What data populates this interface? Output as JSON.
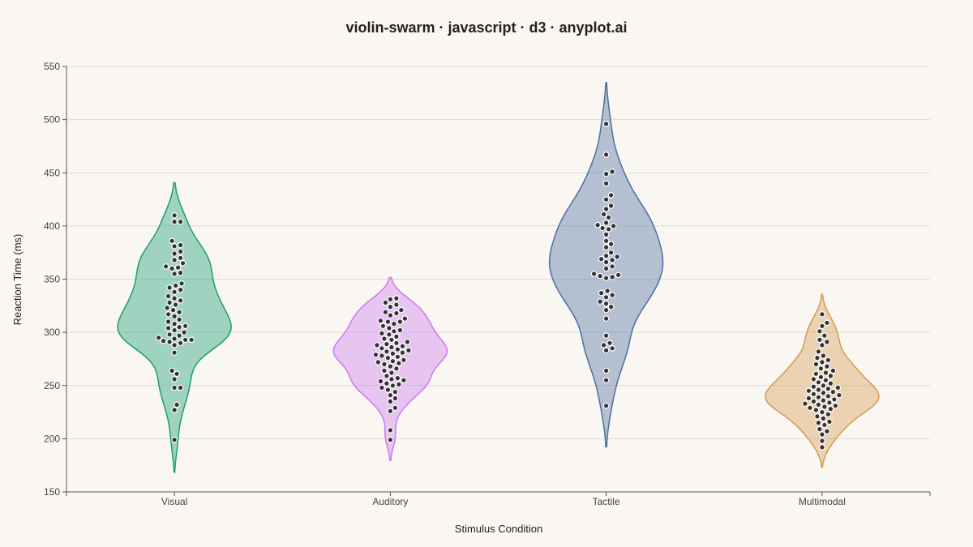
{
  "chart_data": {
    "type": "violin",
    "title": "violin-swarm · javascript · d3 · anyplot.ai",
    "xlabel": "Stimulus Condition",
    "ylabel": "Reaction Time (ms)",
    "ylim": [
      150,
      550
    ],
    "yticks": [
      150,
      200,
      250,
      300,
      350,
      400,
      450,
      500,
      550
    ],
    "grid": "horizontal",
    "categories": [
      "Visual",
      "Auditory",
      "Tactile",
      "Multimodal"
    ],
    "series": [
      {
        "category": "Visual",
        "color": "#1a9e73",
        "fill_opacity": 0.4,
        "values": [
          410,
          404,
          404,
          386,
          382,
          381,
          376,
          374,
          370,
          368,
          365,
          362,
          361,
          360,
          356,
          355,
          346,
          344,
          342,
          340,
          338,
          334,
          332,
          330,
          328,
          326,
          323,
          321,
          319,
          317,
          315,
          312,
          310,
          308,
          306,
          305,
          304,
          302,
          300,
          298,
          297,
          295,
          294,
          293,
          293,
          292,
          291,
          290,
          288,
          281,
          264,
          261,
          256,
          248,
          248,
          232,
          227,
          199
        ]
      },
      {
        "category": "Auditory",
        "color": "#cc78f0",
        "fill_opacity": 0.4,
        "values": [
          332,
          331,
          328,
          326,
          324,
          321,
          319,
          318,
          316,
          313,
          311,
          310,
          310,
          308,
          306,
          304,
          302,
          301,
          299,
          298,
          296,
          294,
          293,
          291,
          290,
          289,
          288,
          287,
          286,
          285,
          284,
          283,
          282,
          281,
          280,
          279,
          278,
          277,
          276,
          274,
          273,
          272,
          271,
          270,
          268,
          266,
          264,
          262,
          259,
          257,
          256,
          255,
          254,
          252,
          251,
          250,
          248,
          246,
          244,
          241,
          238,
          235,
          229,
          226,
          208,
          199
        ]
      },
      {
        "category": "Tactile",
        "color": "#4c6ea2",
        "fill_opacity": 0.4,
        "values": [
          496,
          467,
          451,
          449,
          440,
          429,
          425,
          419,
          416,
          411,
          408,
          403,
          401,
          400,
          398,
          397,
          392,
          386,
          383,
          380,
          375,
          372,
          371,
          369,
          368,
          366,
          362,
          360,
          355,
          354,
          353,
          352,
          351,
          339,
          337,
          335,
          333,
          329,
          327,
          324,
          321,
          313,
          297,
          290,
          288,
          285,
          283,
          264,
          255,
          231
        ]
      },
      {
        "category": "Multimodal",
        "color": "#d49a52",
        "fill_opacity": 0.4,
        "values": [
          317,
          309,
          306,
          301,
          297,
          293,
          291,
          288,
          282,
          278,
          276,
          274,
          272,
          270,
          268,
          266,
          264,
          262,
          261,
          259,
          258,
          256,
          255,
          253,
          252,
          250,
          249,
          248,
          247,
          246,
          245,
          244,
          243,
          242,
          241,
          240,
          239,
          238,
          237,
          236,
          235,
          234,
          233,
          232,
          231,
          230,
          229,
          228,
          227,
          225,
          223,
          221,
          219,
          216,
          215,
          213,
          209,
          207,
          204,
          198,
          192
        ]
      }
    ]
  }
}
